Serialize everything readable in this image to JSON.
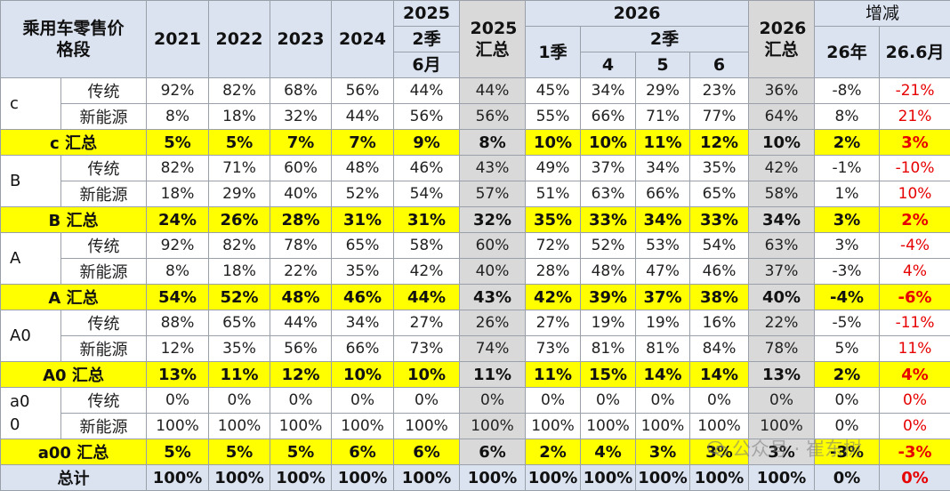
{
  "header": {
    "corner": "乘用车零售价格段",
    "years": [
      "2021",
      "2022",
      "2023",
      "2024"
    ],
    "y2025": "2025",
    "q2": "2季",
    "m6": "6月",
    "sum2025": "2025汇总",
    "y2026": "2026",
    "q1": "1季",
    "m4": "4",
    "m5": "5",
    "m6b": "6",
    "sum2026": "2026汇总",
    "change": "增减",
    "c26": "26年",
    "c266": "26.6月"
  },
  "groups": [
    {
      "label": "c",
      "rows": [
        {
          "name": "传统",
          "v": [
            "92%",
            "82%",
            "68%",
            "56%",
            "44%",
            "44%",
            "45%",
            "34%",
            "29%",
            "23%",
            "36%",
            "-8%",
            "-21%"
          ]
        },
        {
          "name": "新能源",
          "v": [
            "8%",
            "18%",
            "32%",
            "44%",
            "56%",
            "56%",
            "55%",
            "66%",
            "71%",
            "77%",
            "64%",
            "8%",
            "21%"
          ]
        }
      ],
      "sum": {
        "name": "c 汇总",
        "v": [
          "5%",
          "5%",
          "7%",
          "7%",
          "9%",
          "8%",
          "10%",
          "10%",
          "11%",
          "12%",
          "10%",
          "2%",
          "3%"
        ]
      }
    },
    {
      "label": "B",
      "rows": [
        {
          "name": "传统",
          "v": [
            "82%",
            "71%",
            "60%",
            "48%",
            "46%",
            "43%",
            "49%",
            "37%",
            "34%",
            "35%",
            "42%",
            "-1%",
            "-10%"
          ]
        },
        {
          "name": "新能源",
          "v": [
            "18%",
            "29%",
            "40%",
            "52%",
            "54%",
            "57%",
            "51%",
            "63%",
            "66%",
            "65%",
            "58%",
            "1%",
            "10%"
          ]
        }
      ],
      "sum": {
        "name": "B 汇总",
        "v": [
          "24%",
          "26%",
          "28%",
          "31%",
          "31%",
          "32%",
          "35%",
          "33%",
          "34%",
          "33%",
          "34%",
          "3%",
          "2%"
        ]
      }
    },
    {
      "label": "A",
      "rows": [
        {
          "name": "传统",
          "v": [
            "92%",
            "82%",
            "78%",
            "65%",
            "58%",
            "60%",
            "72%",
            "52%",
            "53%",
            "54%",
            "63%",
            "3%",
            "-4%"
          ]
        },
        {
          "name": "新能源",
          "v": [
            "8%",
            "18%",
            "22%",
            "35%",
            "42%",
            "40%",
            "28%",
            "48%",
            "47%",
            "46%",
            "37%",
            "-3%",
            "4%"
          ]
        }
      ],
      "sum": {
        "name": "A 汇总",
        "v": [
          "54%",
          "52%",
          "48%",
          "46%",
          "44%",
          "43%",
          "42%",
          "39%",
          "37%",
          "38%",
          "40%",
          "-4%",
          "-6%"
        ]
      }
    },
    {
      "label": "A0",
      "rows": [
        {
          "name": "传统",
          "v": [
            "88%",
            "65%",
            "44%",
            "34%",
            "27%",
            "26%",
            "27%",
            "19%",
            "19%",
            "16%",
            "22%",
            "-5%",
            "-11%"
          ]
        },
        {
          "name": "新能源",
          "v": [
            "12%",
            "35%",
            "56%",
            "66%",
            "73%",
            "74%",
            "73%",
            "81%",
            "81%",
            "84%",
            "78%",
            "5%",
            "11%"
          ]
        }
      ],
      "sum": {
        "name": "A0 汇总",
        "v": [
          "13%",
          "11%",
          "12%",
          "10%",
          "10%",
          "11%",
          "11%",
          "15%",
          "14%",
          "14%",
          "13%",
          "2%",
          "4%"
        ]
      }
    },
    {
      "label": "a00",
      "rows": [
        {
          "name": "传统",
          "v": [
            "0%",
            "0%",
            "0%",
            "0%",
            "0%",
            "0%",
            "0%",
            "0%",
            "0%",
            "0%",
            "0%",
            "0%",
            "0%"
          ]
        },
        {
          "name": "新能源",
          "v": [
            "100%",
            "100%",
            "100%",
            "100%",
            "100%",
            "100%",
            "100%",
            "100%",
            "100%",
            "100%",
            "100%",
            "0%",
            "0%"
          ]
        }
      ],
      "sum": {
        "name": "a00 汇总",
        "v": [
          "5%",
          "5%",
          "5%",
          "6%",
          "6%",
          "6%",
          "2%",
          "4%",
          "3%",
          "3%",
          "3%",
          "-3%",
          "-3%"
        ]
      }
    }
  ],
  "total": {
    "name": "总计",
    "v": [
      "100%",
      "100%",
      "100%",
      "100%",
      "100%",
      "100%",
      "100%",
      "100%",
      "100%",
      "100%",
      "100%",
      "0%",
      "0%"
    ]
  },
  "watermark": "公众号 · 崔东树",
  "colors": {
    "header_bg": "#dbe3f1",
    "sum_bg": "#ffff00",
    "gray_col": "#d9d9d9",
    "negative_red": "#e60000"
  }
}
